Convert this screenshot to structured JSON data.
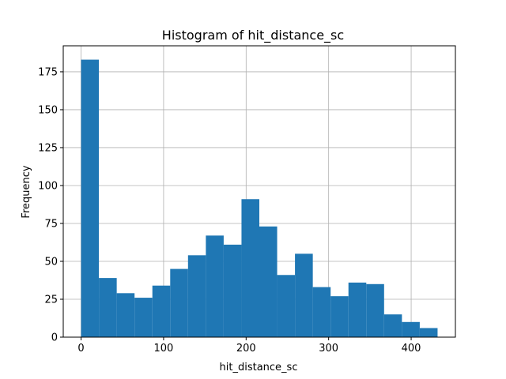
{
  "chart_data": {
    "type": "bar",
    "title": "Histogram of hit_distance_sc",
    "xlabel": "hit_distance_sc",
    "ylabel": "Frequency",
    "bin_start": 0,
    "bin_width": 21.6,
    "values": [
      183,
      39,
      29,
      26,
      34,
      45,
      54,
      67,
      61,
      91,
      73,
      41,
      55,
      33,
      27,
      36,
      35,
      15,
      10,
      6
    ],
    "xlim": [
      -21.6,
      453.6
    ],
    "ylim": [
      0,
      192.15
    ],
    "xticks": [
      0,
      100,
      200,
      300,
      400
    ],
    "yticks": [
      0,
      25,
      50,
      75,
      100,
      125,
      150,
      175
    ],
    "grid": true,
    "bar_color": "#1f77b4",
    "grid_color": "#b0b0b0"
  }
}
